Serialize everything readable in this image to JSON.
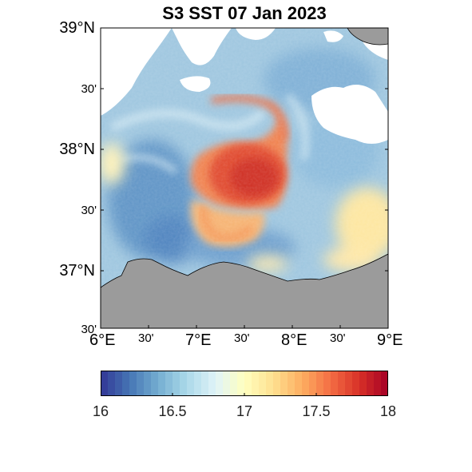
{
  "title": "S3 SST 07 Jan 2023",
  "y_ticks": [
    {
      "label": "39°N",
      "size": "major"
    },
    {
      "label": "30'",
      "size": "minor"
    },
    {
      "label": "38°N",
      "size": "major"
    },
    {
      "label": "30'",
      "size": "minor"
    },
    {
      "label": "37°N",
      "size": "major"
    },
    {
      "label": "30'",
      "size": "minor"
    }
  ],
  "x_ticks": [
    {
      "label": "6°E",
      "size": "major"
    },
    {
      "label": "30'",
      "size": "minor"
    },
    {
      "label": "7°E",
      "size": "major"
    },
    {
      "label": "30'",
      "size": "minor"
    },
    {
      "label": "8°E",
      "size": "major"
    },
    {
      "label": "30'",
      "size": "minor"
    },
    {
      "label": "9°E",
      "size": "major"
    }
  ],
  "colorbar": {
    "min": 16,
    "max": 18,
    "tick_labels": [
      "16",
      "16.5",
      "17",
      "17.5",
      "18"
    ],
    "colormap": "RdYlBu reversed",
    "colors": [
      "#313695",
      "#4575b4",
      "#74add1",
      "#abd9e9",
      "#e0f3f8",
      "#ffffbf",
      "#fee090",
      "#fdae61",
      "#f46d43",
      "#d73027",
      "#a50026"
    ]
  },
  "colors": {
    "land": "#9b9b9b",
    "no_data": "#ffffff",
    "warm_eddy": "#e05535",
    "background_sea": "#9ec6df"
  }
}
